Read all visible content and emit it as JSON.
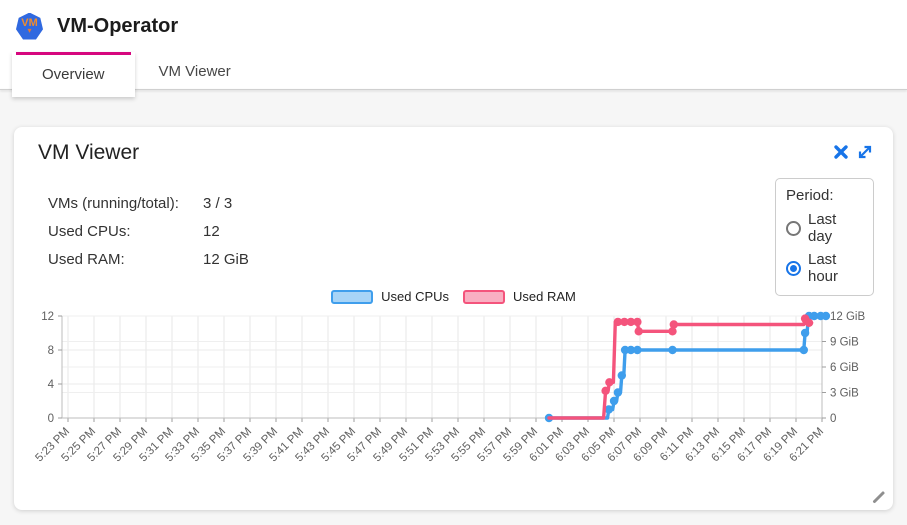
{
  "header": {
    "app_title": "VM-Operator",
    "logo_text": "VM",
    "logo_icon": "vm-heptagon-logo"
  },
  "tabs": [
    {
      "label": "Overview",
      "active": true
    },
    {
      "label": "VM Viewer",
      "active": false
    }
  ],
  "colors": {
    "accent_pink": "#d6077e",
    "icon_blue": "#1774e8",
    "cpu_line": "#3f9eec",
    "cpu_fill": "#a7d4f7",
    "ram_line": "#f4547c",
    "ram_fill": "#f9afc2"
  },
  "panel": {
    "title": "VM Viewer",
    "stats": [
      {
        "label": "VMs (running/total):",
        "value": "3 / 3"
      },
      {
        "label": "Used CPUs:",
        "value": "12"
      },
      {
        "label": "Used RAM:",
        "value": "12 GiB"
      }
    ],
    "period": {
      "label": "Period:",
      "options": [
        {
          "label": "Last day",
          "selected": false
        },
        {
          "label": "Last hour",
          "selected": true
        }
      ]
    }
  },
  "chart_data": {
    "type": "line",
    "title": "",
    "x_axis": {
      "unit": "time",
      "minutes_per_tick": 2,
      "x_is": "minutes after 5:23 PM",
      "tick_labels": [
        "5:23 PM",
        "5:25 PM",
        "5:27 PM",
        "5:29 PM",
        "5:31 PM",
        "5:33 PM",
        "5:35 PM",
        "5:37 PM",
        "5:39 PM",
        "5:41 PM",
        "5:43 PM",
        "5:45 PM",
        "5:47 PM",
        "5:49 PM",
        "5:51 PM",
        "5:53 PM",
        "5:55 PM",
        "5:57 PM",
        "5:59 PM",
        "6:01 PM",
        "6:03 PM",
        "6:05 PM",
        "6:07 PM",
        "6:09 PM",
        "6:11 PM",
        "6:13 PM",
        "6:15 PM",
        "6:17 PM",
        "6:19 PM",
        "6:21 PM"
      ]
    },
    "y_axis_left": {
      "ticks": [
        0,
        4,
        8,
        12
      ],
      "range": [
        0,
        12
      ],
      "for_series": "Used CPUs"
    },
    "y_axis_right": {
      "ticks": [
        0,
        3,
        6,
        9,
        12
      ],
      "tick_labels": [
        "0",
        "3 GiB",
        "6 GiB",
        "9 GiB",
        "12 GiB"
      ],
      "range": [
        0,
        12
      ],
      "for_series": "Used RAM"
    },
    "legend": [
      {
        "label": "Used CPUs",
        "color": "#3f9eec",
        "fill": "#a7d4f7"
      },
      {
        "label": "Used RAM",
        "color": "#f4547c",
        "fill": "#f9afc2"
      }
    ],
    "grid": true,
    "series": [
      {
        "name": "Used CPUs",
        "axis": "left",
        "color": "#3f9eec",
        "points": [
          [
            37,
            0
          ],
          [
            41.5,
            0
          ],
          [
            41.6,
            1
          ],
          [
            41.9,
            1
          ],
          [
            42.0,
            2
          ],
          [
            42.2,
            2
          ],
          [
            42.3,
            3
          ],
          [
            42.5,
            3
          ],
          [
            42.6,
            5
          ],
          [
            42.75,
            5
          ],
          [
            42.85,
            8
          ],
          [
            56.6,
            8
          ],
          [
            56.7,
            10
          ],
          [
            56.85,
            10
          ],
          [
            56.95,
            12
          ],
          [
            58.3,
            12
          ]
        ],
        "dots": [
          [
            37,
            0
          ],
          [
            41.6,
            1
          ],
          [
            42.0,
            2
          ],
          [
            42.3,
            3
          ],
          [
            42.6,
            5
          ],
          [
            42.85,
            8
          ],
          [
            43.3,
            8
          ],
          [
            43.8,
            8
          ],
          [
            46.5,
            8
          ],
          [
            56.6,
            8
          ],
          [
            56.7,
            10
          ],
          [
            57.0,
            12
          ],
          [
            57.4,
            12
          ],
          [
            57.9,
            12
          ],
          [
            58.3,
            12
          ]
        ]
      },
      {
        "name": "Used RAM",
        "axis": "right",
        "color": "#f4547c",
        "points": [
          [
            37,
            0
          ],
          [
            41.2,
            0
          ],
          [
            41.35,
            3.2
          ],
          [
            41.55,
            3.2
          ],
          [
            41.65,
            4.2
          ],
          [
            41.95,
            4.2
          ],
          [
            42.1,
            11.3
          ],
          [
            43.8,
            11.3
          ],
          [
            43.9,
            10.2
          ],
          [
            46.5,
            10.2
          ],
          [
            46.6,
            11.0
          ],
          [
            56.6,
            11.0
          ],
          [
            56.7,
            11.7
          ],
          [
            56.9,
            11.7
          ],
          [
            57.0,
            11.2
          ],
          [
            57.2,
            11.2
          ]
        ],
        "dots": [
          [
            41.35,
            3.2
          ],
          [
            41.65,
            4.2
          ],
          [
            42.3,
            11.3
          ],
          [
            42.8,
            11.3
          ],
          [
            43.3,
            11.3
          ],
          [
            43.8,
            11.3
          ],
          [
            43.9,
            10.2
          ],
          [
            46.5,
            10.2
          ],
          [
            46.6,
            11.0
          ],
          [
            56.7,
            11.7
          ],
          [
            57.0,
            11.2
          ]
        ]
      }
    ]
  },
  "icons": [
    "vm-heptagon-logo",
    "close-icon",
    "expand-icon",
    "resize-handle-icon"
  ]
}
